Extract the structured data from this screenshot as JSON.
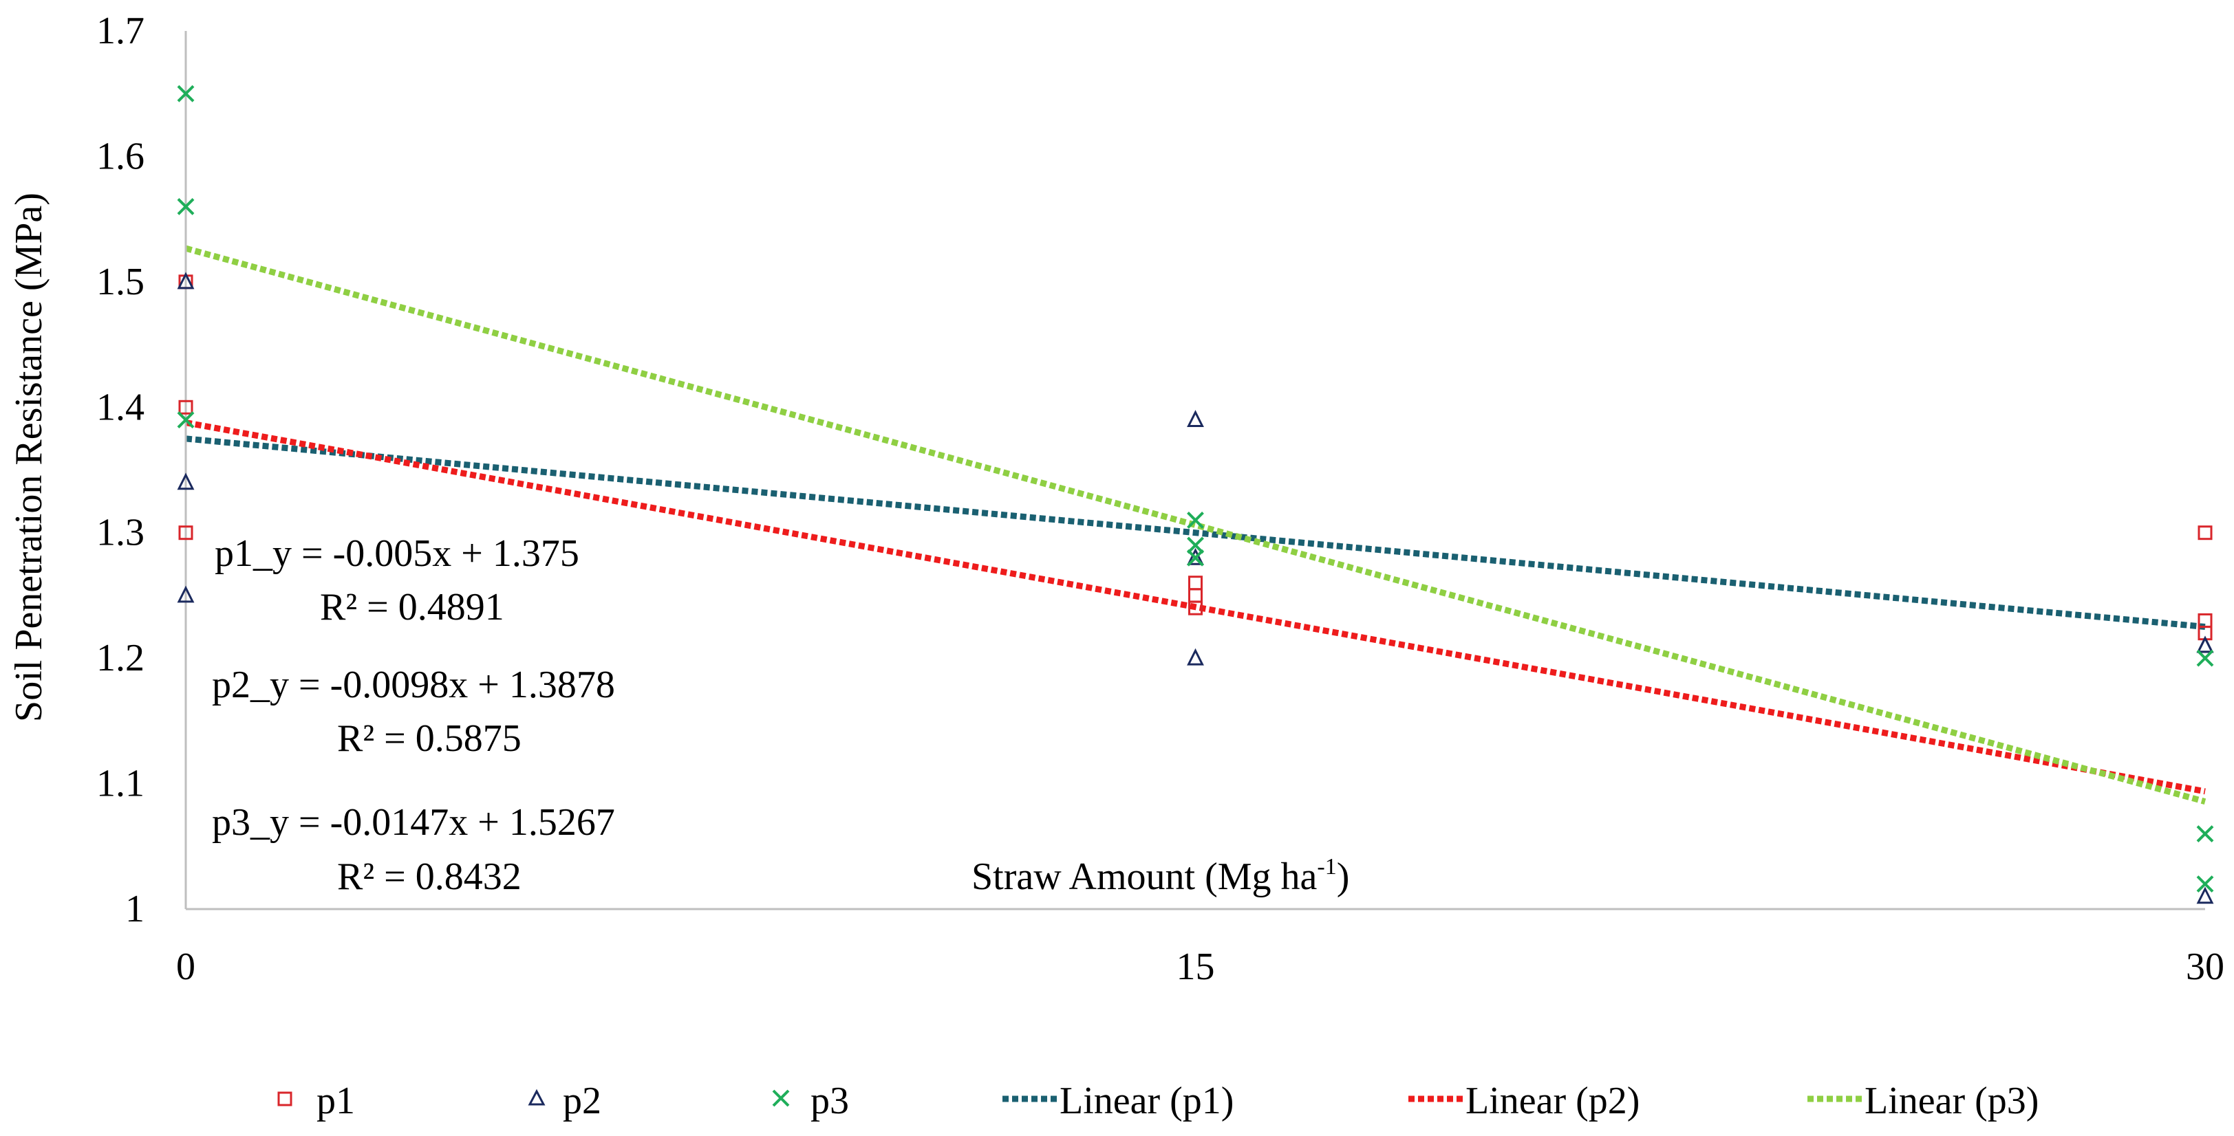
{
  "chart_data": {
    "type": "scatter",
    "title": "",
    "xlabel": "Straw Amount (Mg ha",
    "xlabel_superscript": "-1",
    "xlabel_suffix": ")",
    "ylabel": "Soil Penetration Resistance (MPa)",
    "xlim": [
      0,
      30
    ],
    "ylim": [
      1.0,
      1.7
    ],
    "x_ticks": [
      "0",
      "15",
      "30"
    ],
    "x_tick_values": [
      0,
      15,
      30
    ],
    "y_ticks": [
      "1",
      "1.1",
      "1.2",
      "1.3",
      "1.4",
      "1.5",
      "1.6",
      "1.7"
    ],
    "y_tick_values": [
      1.0,
      1.1,
      1.2,
      1.3,
      1.4,
      1.5,
      1.6,
      1.7
    ],
    "grid": false,
    "legend_position": "bottom",
    "series": [
      {
        "name": "p1",
        "marker": "square",
        "color": "#d9262b",
        "points": [
          [
            0,
            1.5
          ],
          [
            0,
            1.4
          ],
          [
            0,
            1.3
          ],
          [
            15,
            1.26
          ],
          [
            15,
            1.25
          ],
          [
            15,
            1.24
          ],
          [
            30,
            1.3
          ],
          [
            30,
            1.23
          ],
          [
            30,
            1.22
          ]
        ]
      },
      {
        "name": "p2",
        "marker": "triangle",
        "color": "#1b2a5e",
        "points": [
          [
            0,
            1.5
          ],
          [
            0,
            1.34
          ],
          [
            0,
            1.25
          ],
          [
            15,
            1.39
          ],
          [
            15,
            1.28
          ],
          [
            15,
            1.2
          ],
          [
            30,
            1.21
          ],
          [
            30,
            1.21
          ],
          [
            30,
            1.01
          ]
        ]
      },
      {
        "name": "p3",
        "marker": "x",
        "color": "#1fae5a",
        "points": [
          [
            0,
            1.65
          ],
          [
            0,
            1.56
          ],
          [
            0,
            1.39
          ],
          [
            15,
            1.31
          ],
          [
            15,
            1.29
          ],
          [
            15,
            1.28
          ],
          [
            30,
            1.2
          ],
          [
            30,
            1.06
          ],
          [
            30,
            1.02
          ]
        ]
      }
    ],
    "trendlines": [
      {
        "name": "Linear (p1)",
        "slope": -0.005,
        "intercept": 1.375,
        "color": "#1a6071"
      },
      {
        "name": "Linear (p2)",
        "slope": -0.0098,
        "intercept": 1.3878,
        "color": "#ee1c1c"
      },
      {
        "name": "Linear (p3)",
        "slope": -0.0147,
        "intercept": 1.5267,
        "color": "#8fcf43"
      }
    ],
    "annotations": [
      {
        "equation": "p1_y = -0.005x + 1.375",
        "r2": "R² = 0.4891"
      },
      {
        "equation": "p2_y = -0.0098x + 1.3878",
        "r2": "R² = 0.5875"
      },
      {
        "equation": "p3_y = -0.0147x + 1.5267",
        "r2": "R² = 0.8432"
      }
    ],
    "legend": [
      "p1",
      "p2",
      "p3",
      "Linear (p1)",
      "Linear (p2)",
      "Linear (p3)"
    ]
  }
}
